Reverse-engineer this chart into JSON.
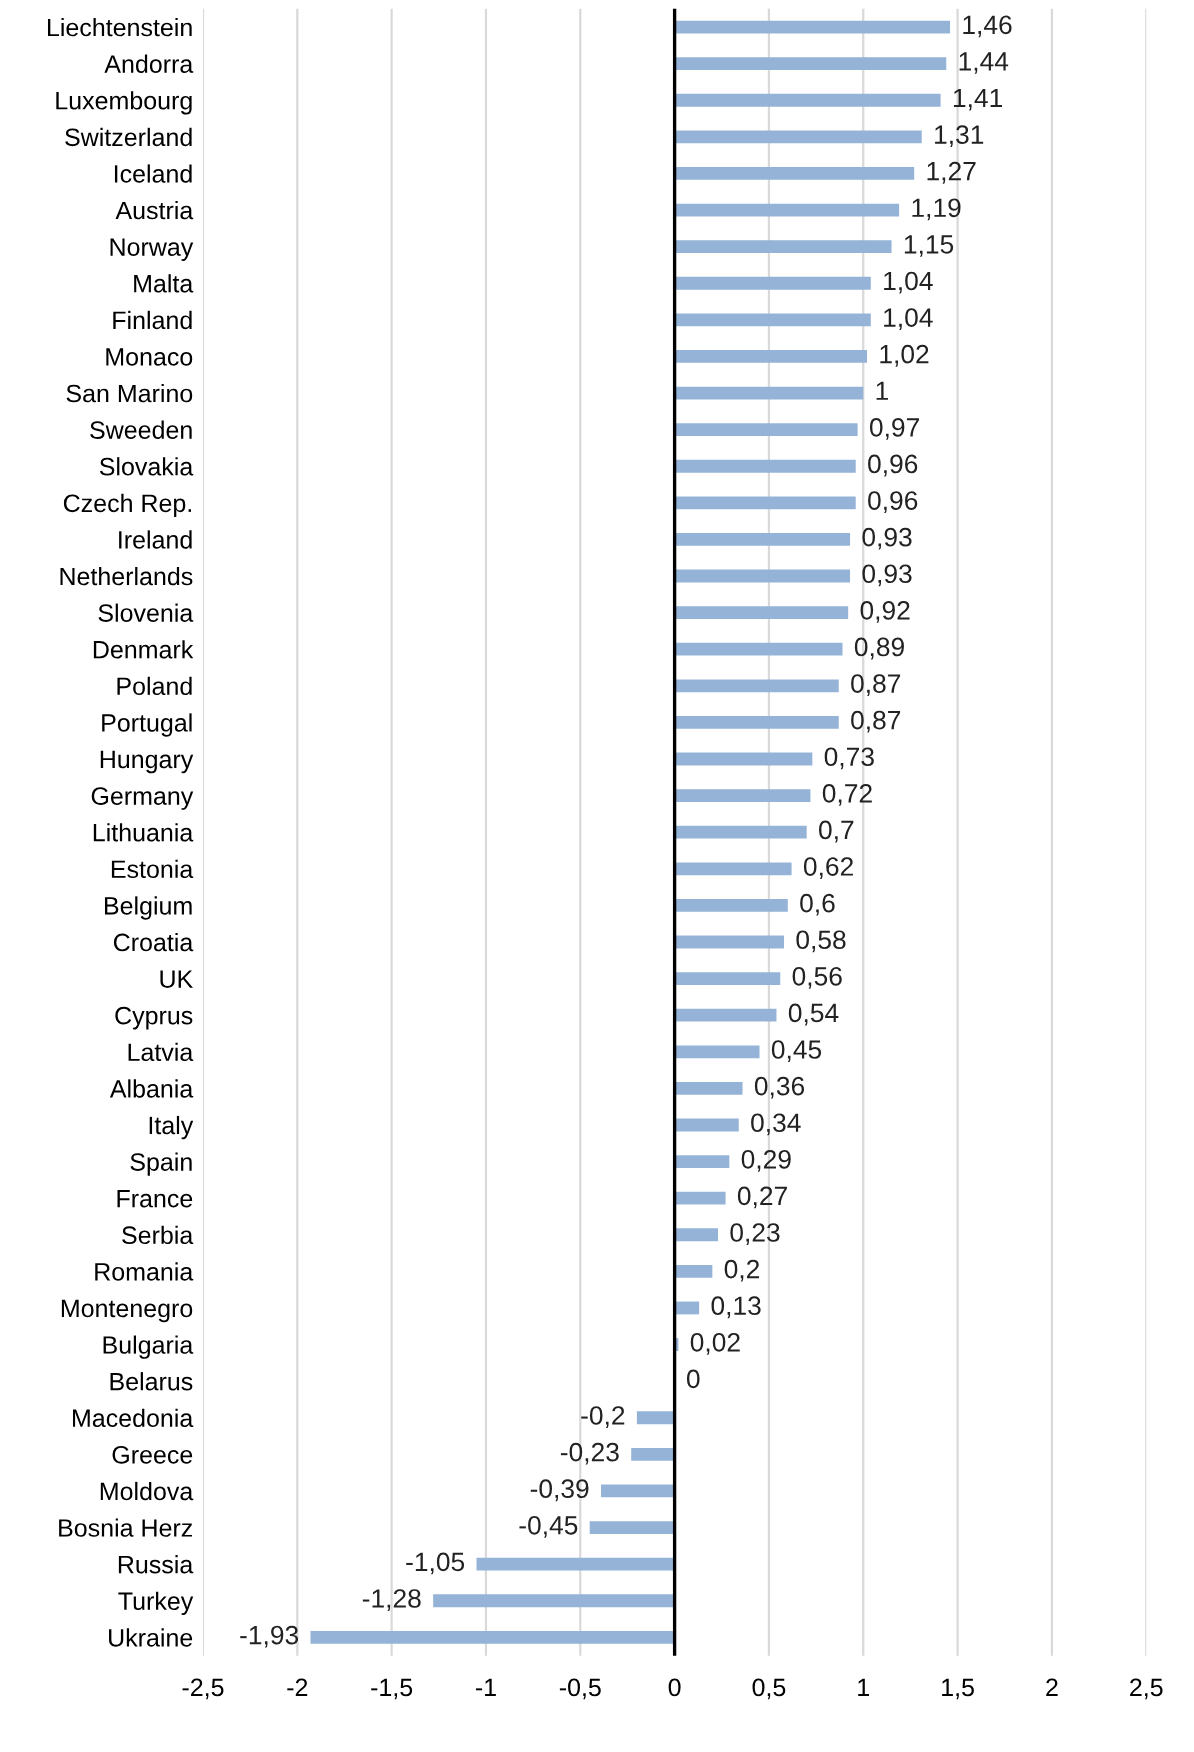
{
  "chart_data": {
    "type": "bar",
    "orientation": "horizontal",
    "categories": [
      "Liechtenstein",
      "Andorra",
      "Luxembourg",
      "Switzerland",
      "Iceland",
      "Austria",
      "Norway",
      "Malta",
      "Finland",
      "Monaco",
      "San Marino",
      "Sweeden",
      "Slovakia",
      "Czech Rep.",
      "Ireland",
      "Netherlands",
      "Slovenia",
      "Denmark",
      "Poland",
      "Portugal",
      "Hungary",
      "Germany",
      "Lithuania",
      "Estonia",
      "Belgium",
      "Croatia",
      "UK",
      "Cyprus",
      "Latvia",
      "Albania",
      "Italy",
      "Spain",
      "France",
      "Serbia",
      "Romania",
      "Montenegro",
      "Bulgaria",
      "Belarus",
      "Macedonia",
      "Greece",
      "Moldova",
      "Bosnia Herz",
      "Russia",
      "Turkey",
      "Ukraine"
    ],
    "values": [
      1.46,
      1.44,
      1.41,
      1.31,
      1.27,
      1.19,
      1.15,
      1.04,
      1.04,
      1.02,
      1,
      0.97,
      0.96,
      0.96,
      0.93,
      0.93,
      0.92,
      0.89,
      0.87,
      0.87,
      0.73,
      0.72,
      0.7,
      0.62,
      0.6,
      0.58,
      0.56,
      0.54,
      0.45,
      0.36,
      0.34,
      0.29,
      0.27,
      0.23,
      0.2,
      0.13,
      0.02,
      0,
      -0.2,
      -0.23,
      -0.39,
      -0.45,
      -1.05,
      -1.28,
      -1.93
    ],
    "value_labels": [
      "1,46",
      "1,44",
      "1,41",
      "1,31",
      "1,27",
      "1,19",
      "1,15",
      "1,04",
      "1,04",
      "1,02",
      "1",
      "0,97",
      "0,96",
      "0,96",
      "0,93",
      "0,93",
      "0,92",
      "0,89",
      "0,87",
      "0,87",
      "0,73",
      "0,72",
      "0,7",
      "0,62",
      "0,6",
      "0,58",
      "0,56",
      "0,54",
      "0,45",
      "0,36",
      "0,34",
      "0,29",
      "0,27",
      "0,23",
      "0,2",
      "0,13",
      "0,02",
      "0",
      "-0,2",
      "-0,23",
      "-0,39",
      "-0,45",
      "-1,05",
      "-1,28",
      "-1,93"
    ],
    "color": "#95b3d7",
    "xlim": [
      -2.5,
      2.5
    ],
    "xticks": [
      {
        "value": -2.5,
        "label": "-2,5"
      },
      -2,
      {
        "value": -1.5,
        "label": "-1,5"
      },
      -1,
      {
        "value": -0.5,
        "label": "-0,5"
      },
      0,
      {
        "value": 0.5,
        "label": "0,5"
      },
      1,
      {
        "value": 1.5,
        "label": "1,5"
      },
      2,
      {
        "value": 2.5,
        "label": "2,5"
      }
    ],
    "grid": "x",
    "legend": false
  }
}
